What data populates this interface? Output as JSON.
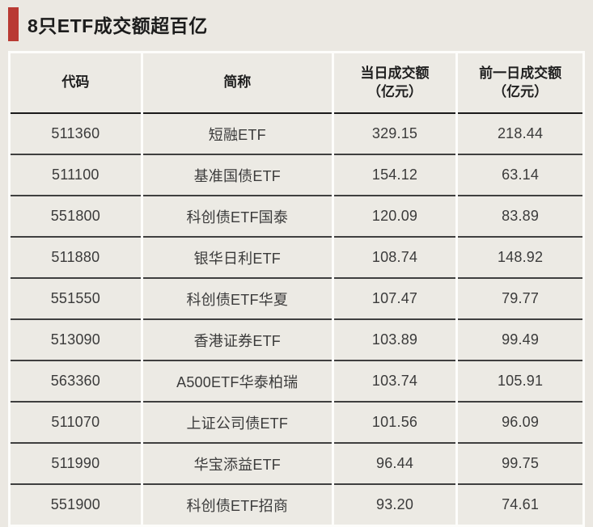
{
  "title": "8只ETF成交额超百亿",
  "colors": {
    "accent_red": "#b93a33",
    "page_bg": "#ebe8e2",
    "cell_bg": "#eceae4",
    "gap_white": "#fdfdfb",
    "header_rule": "#1a1a1a",
    "row_rule": "#3f3f3f",
    "title_text": "#1c1c1c",
    "body_text": "#3b3b3b"
  },
  "table": {
    "headers": [
      {
        "line1": "代码",
        "line2": ""
      },
      {
        "line1": "简称",
        "line2": ""
      },
      {
        "line1": "当日成交额",
        "line2": "（亿元）"
      },
      {
        "line1": "前一日成交额",
        "line2": "（亿元）"
      }
    ]
  },
  "chart_data": {
    "type": "table",
    "title": "8只ETF成交额超百亿",
    "columns": [
      "代码",
      "简称",
      "当日成交额（亿元）",
      "前一日成交额（亿元）"
    ],
    "rows": [
      [
        "511360",
        "短融ETF",
        "329.15",
        "218.44"
      ],
      [
        "511100",
        "基准国债ETF",
        "154.12",
        "63.14"
      ],
      [
        "551800",
        "科创债ETF国泰",
        "120.09",
        "83.89"
      ],
      [
        "511880",
        "银华日利ETF",
        "108.74",
        "148.92"
      ],
      [
        "551550",
        "科创债ETF华夏",
        "107.47",
        "79.77"
      ],
      [
        "513090",
        "香港证券ETF",
        "103.89",
        "99.49"
      ],
      [
        "563360",
        "A500ETF华泰柏瑞",
        "103.74",
        "105.91"
      ],
      [
        "511070",
        "上证公司债ETF",
        "101.56",
        "96.09"
      ],
      [
        "511990",
        "华宝添益ETF",
        "96.44",
        "99.75"
      ],
      [
        "551900",
        "科创债ETF招商",
        "93.20",
        "74.61"
      ]
    ]
  }
}
